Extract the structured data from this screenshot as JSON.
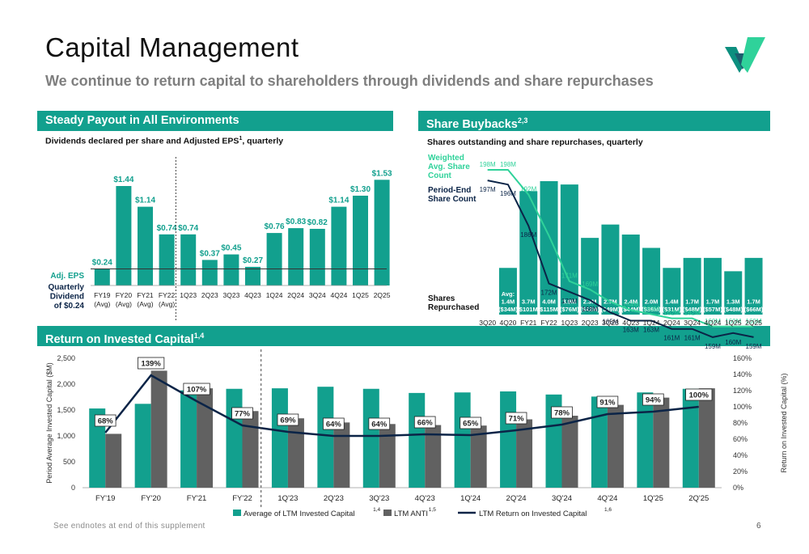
{
  "header": {
    "title": "Capital Management",
    "subtitle": "We continue to return capital to shareholders through dividends and share repurchases"
  },
  "colors": {
    "teal": "#12a08e",
    "navy": "#0b2447",
    "gray": "#616161",
    "light_teal": "#2fd29a"
  },
  "left_panel": {
    "header": "Steady Payout in All Environments",
    "subheader": "Dividends declared per share and Adjusted EPS",
    "subheader_sup": "1",
    "subheader_suffix": ", quarterly",
    "eps_label": "Adj. EPS",
    "dividend_label_lines": [
      "Quarterly",
      "Dividend",
      "of $0.24"
    ]
  },
  "right_panel": {
    "header": "Share Buybacks",
    "header_sup": "2,3",
    "subheader": "Shares outstanding and share repurchases, quarterly",
    "weighted_label_lines": [
      "Weighted",
      "Avg. Share",
      "Count"
    ],
    "period_end_label_lines": [
      "Period-End",
      "Share Count"
    ],
    "repurchased_label_lines": [
      "Shares",
      "Repurchased"
    ]
  },
  "bottom_panel": {
    "header": "Return on Invested Capital",
    "header_sup": "1,4",
    "legend": [
      {
        "label": "Average of LTM Invested Capital",
        "sup": "1,4"
      },
      {
        "label": "LTM ANTI",
        "sup": "1,5"
      },
      {
        "label": "LTM Return on Invested Capital",
        "sup": "1,6"
      }
    ]
  },
  "footer": {
    "note": "See endnotes at end of this supplement",
    "page": "6"
  },
  "chart_data": [
    {
      "type": "bar",
      "title": "Dividends declared per share and Adjusted EPS, quarterly",
      "categories": [
        [
          "FY19",
          "(Avg)"
        ],
        [
          "FY20",
          "(Avg)"
        ],
        [
          "FY21",
          "(Avg)"
        ],
        [
          "FY22",
          "(Avg)"
        ],
        [
          "1Q23"
        ],
        [
          "2Q23"
        ],
        [
          "3Q23"
        ],
        [
          "4Q23"
        ],
        [
          "1Q24"
        ],
        [
          "2Q24"
        ],
        [
          "3Q24"
        ],
        [
          "4Q24"
        ],
        [
          "1Q25"
        ],
        [
          "2Q25"
        ]
      ],
      "series": [
        {
          "name": "Adj. EPS",
          "values": [
            0.24,
            1.44,
            1.14,
            0.74,
            0.74,
            0.37,
            0.45,
            0.27,
            0.76,
            0.83,
            0.82,
            1.14,
            1.3,
            1.53
          ]
        }
      ],
      "value_labels": [
        "$0.24",
        "$1.44",
        "$1.14",
        "$0.74",
        "$0.74",
        "$0.37",
        "$0.45",
        "$0.27",
        "$0.76",
        "$0.83",
        "$0.82",
        "$1.14",
        "$1.30",
        "$1.53"
      ],
      "reference_line": {
        "name": "Quarterly Dividend of $0.24",
        "value": 0.24
      },
      "divider_after_index": 3,
      "ylim": [
        0,
        1.6
      ]
    },
    {
      "type": "bar",
      "title": "Shares outstanding and share repurchases, quarterly",
      "categories": [
        "3Q20",
        "4Q20",
        "FY21",
        "FY22",
        "1Q23",
        "2Q23",
        "3Q23",
        "4Q23",
        "1Q24",
        "2Q24",
        "3Q24",
        "4Q24",
        "1Q25",
        "2Q25"
      ],
      "weighted_values": [
        198,
        198,
        192,
        182,
        171,
        169,
        166,
        164,
        163,
        162,
        162,
        160,
        160,
        160
      ],
      "weighted_labels": [
        "198M",
        "198M",
        "192M",
        "",
        "171M",
        "169M",
        "",
        "164M",
        "163M",
        "162M",
        "162M",
        "160M",
        "160M",
        "160M"
      ],
      "period_end_values": [
        197,
        196,
        186,
        172,
        170,
        168,
        165,
        163,
        163,
        161,
        161,
        159,
        160,
        159
      ],
      "period_end_labels": [
        "197M",
        "196M",
        "186M",
        "172M",
        "170M",
        "168M",
        "165M",
        "163M",
        "163M",
        "161M",
        "161M",
        "159M",
        "160M",
        "159M"
      ],
      "repurchased": [
        null,
        {
          "lines": [
            "Avg:",
            "1.4M",
            "($34M)"
          ],
          "value": 1.4
        },
        {
          "lines": [
            "3.7M",
            "($101M)"
          ],
          "value": 3.7
        },
        {
          "lines": [
            "4.0M",
            "($115M)"
          ],
          "value": 4.0
        },
        {
          "lines": [
            "3.9M",
            "($76M)"
          ],
          "value": 3.9
        },
        {
          "lines": [
            "2.3M",
            "($42M)"
          ],
          "value": 2.3
        },
        {
          "lines": [
            "2.7M",
            "($49M)"
          ],
          "value": 2.7
        },
        {
          "lines": [
            "2.4M",
            "($44M)"
          ],
          "value": 2.4
        },
        {
          "lines": [
            "2.0M",
            "($36M)"
          ],
          "value": 2.0
        },
        {
          "lines": [
            "1.4M",
            "($31M)"
          ],
          "value": 1.4
        },
        {
          "lines": [
            "1.7M",
            "($48M)"
          ],
          "value": 1.7
        },
        {
          "lines": [
            "1.7M",
            "($57M)"
          ],
          "value": 1.7
        },
        {
          "lines": [
            "1.3M",
            "($48M)"
          ],
          "value": 1.3
        },
        {
          "lines": [
            "1.7M",
            "($66M)"
          ],
          "value": 1.7
        }
      ]
    },
    {
      "type": "bar",
      "title": "Return on Invested Capital",
      "categories": [
        "FY'19",
        "FY'20",
        "FY'21",
        "FY'22",
        "1Q'23",
        "2Q'23",
        "3Q'23",
        "4Q'23",
        "1Q'24",
        "2Q'24",
        "3Q'24",
        "4Q'24",
        "1Q'25",
        "2Q'25"
      ],
      "series": [
        {
          "name": "Average of LTM Invested Capital",
          "values": [
            1530,
            1620,
            1880,
            1910,
            1920,
            1950,
            1910,
            1830,
            1840,
            1860,
            1800,
            1760,
            1840,
            1910
          ]
        },
        {
          "name": "LTM ANTI",
          "values": [
            1040,
            2260,
            1920,
            1480,
            1340,
            1260,
            1230,
            1210,
            1200,
            1320,
            1390,
            1600,
            1740,
            1920
          ]
        },
        {
          "name": "LTM Return on Invested Capital",
          "values": [
            68,
            139,
            107,
            77,
            69,
            64,
            64,
            66,
            65,
            71,
            78,
            91,
            94,
            100
          ]
        }
      ],
      "roic_labels": [
        "68%",
        "139%",
        "107%",
        "77%",
        "69%",
        "64%",
        "64%",
        "66%",
        "65%",
        "71%",
        "78%",
        "91%",
        "94%",
        "100%"
      ],
      "ylabel": "Period Average Invested Capital ($M)",
      "y2label": "Return on Invested Capital (%)",
      "y_ticks": [
        "0",
        "500",
        "1,000",
        "1,500",
        "2,000",
        "2,500"
      ],
      "y2_ticks": [
        "0%",
        "20%",
        "40%",
        "60%",
        "80%",
        "100%",
        "120%",
        "140%",
        "160%"
      ],
      "ylim": [
        0,
        2500
      ],
      "y2lim": [
        0,
        160
      ],
      "divider_after_index": 3
    }
  ]
}
